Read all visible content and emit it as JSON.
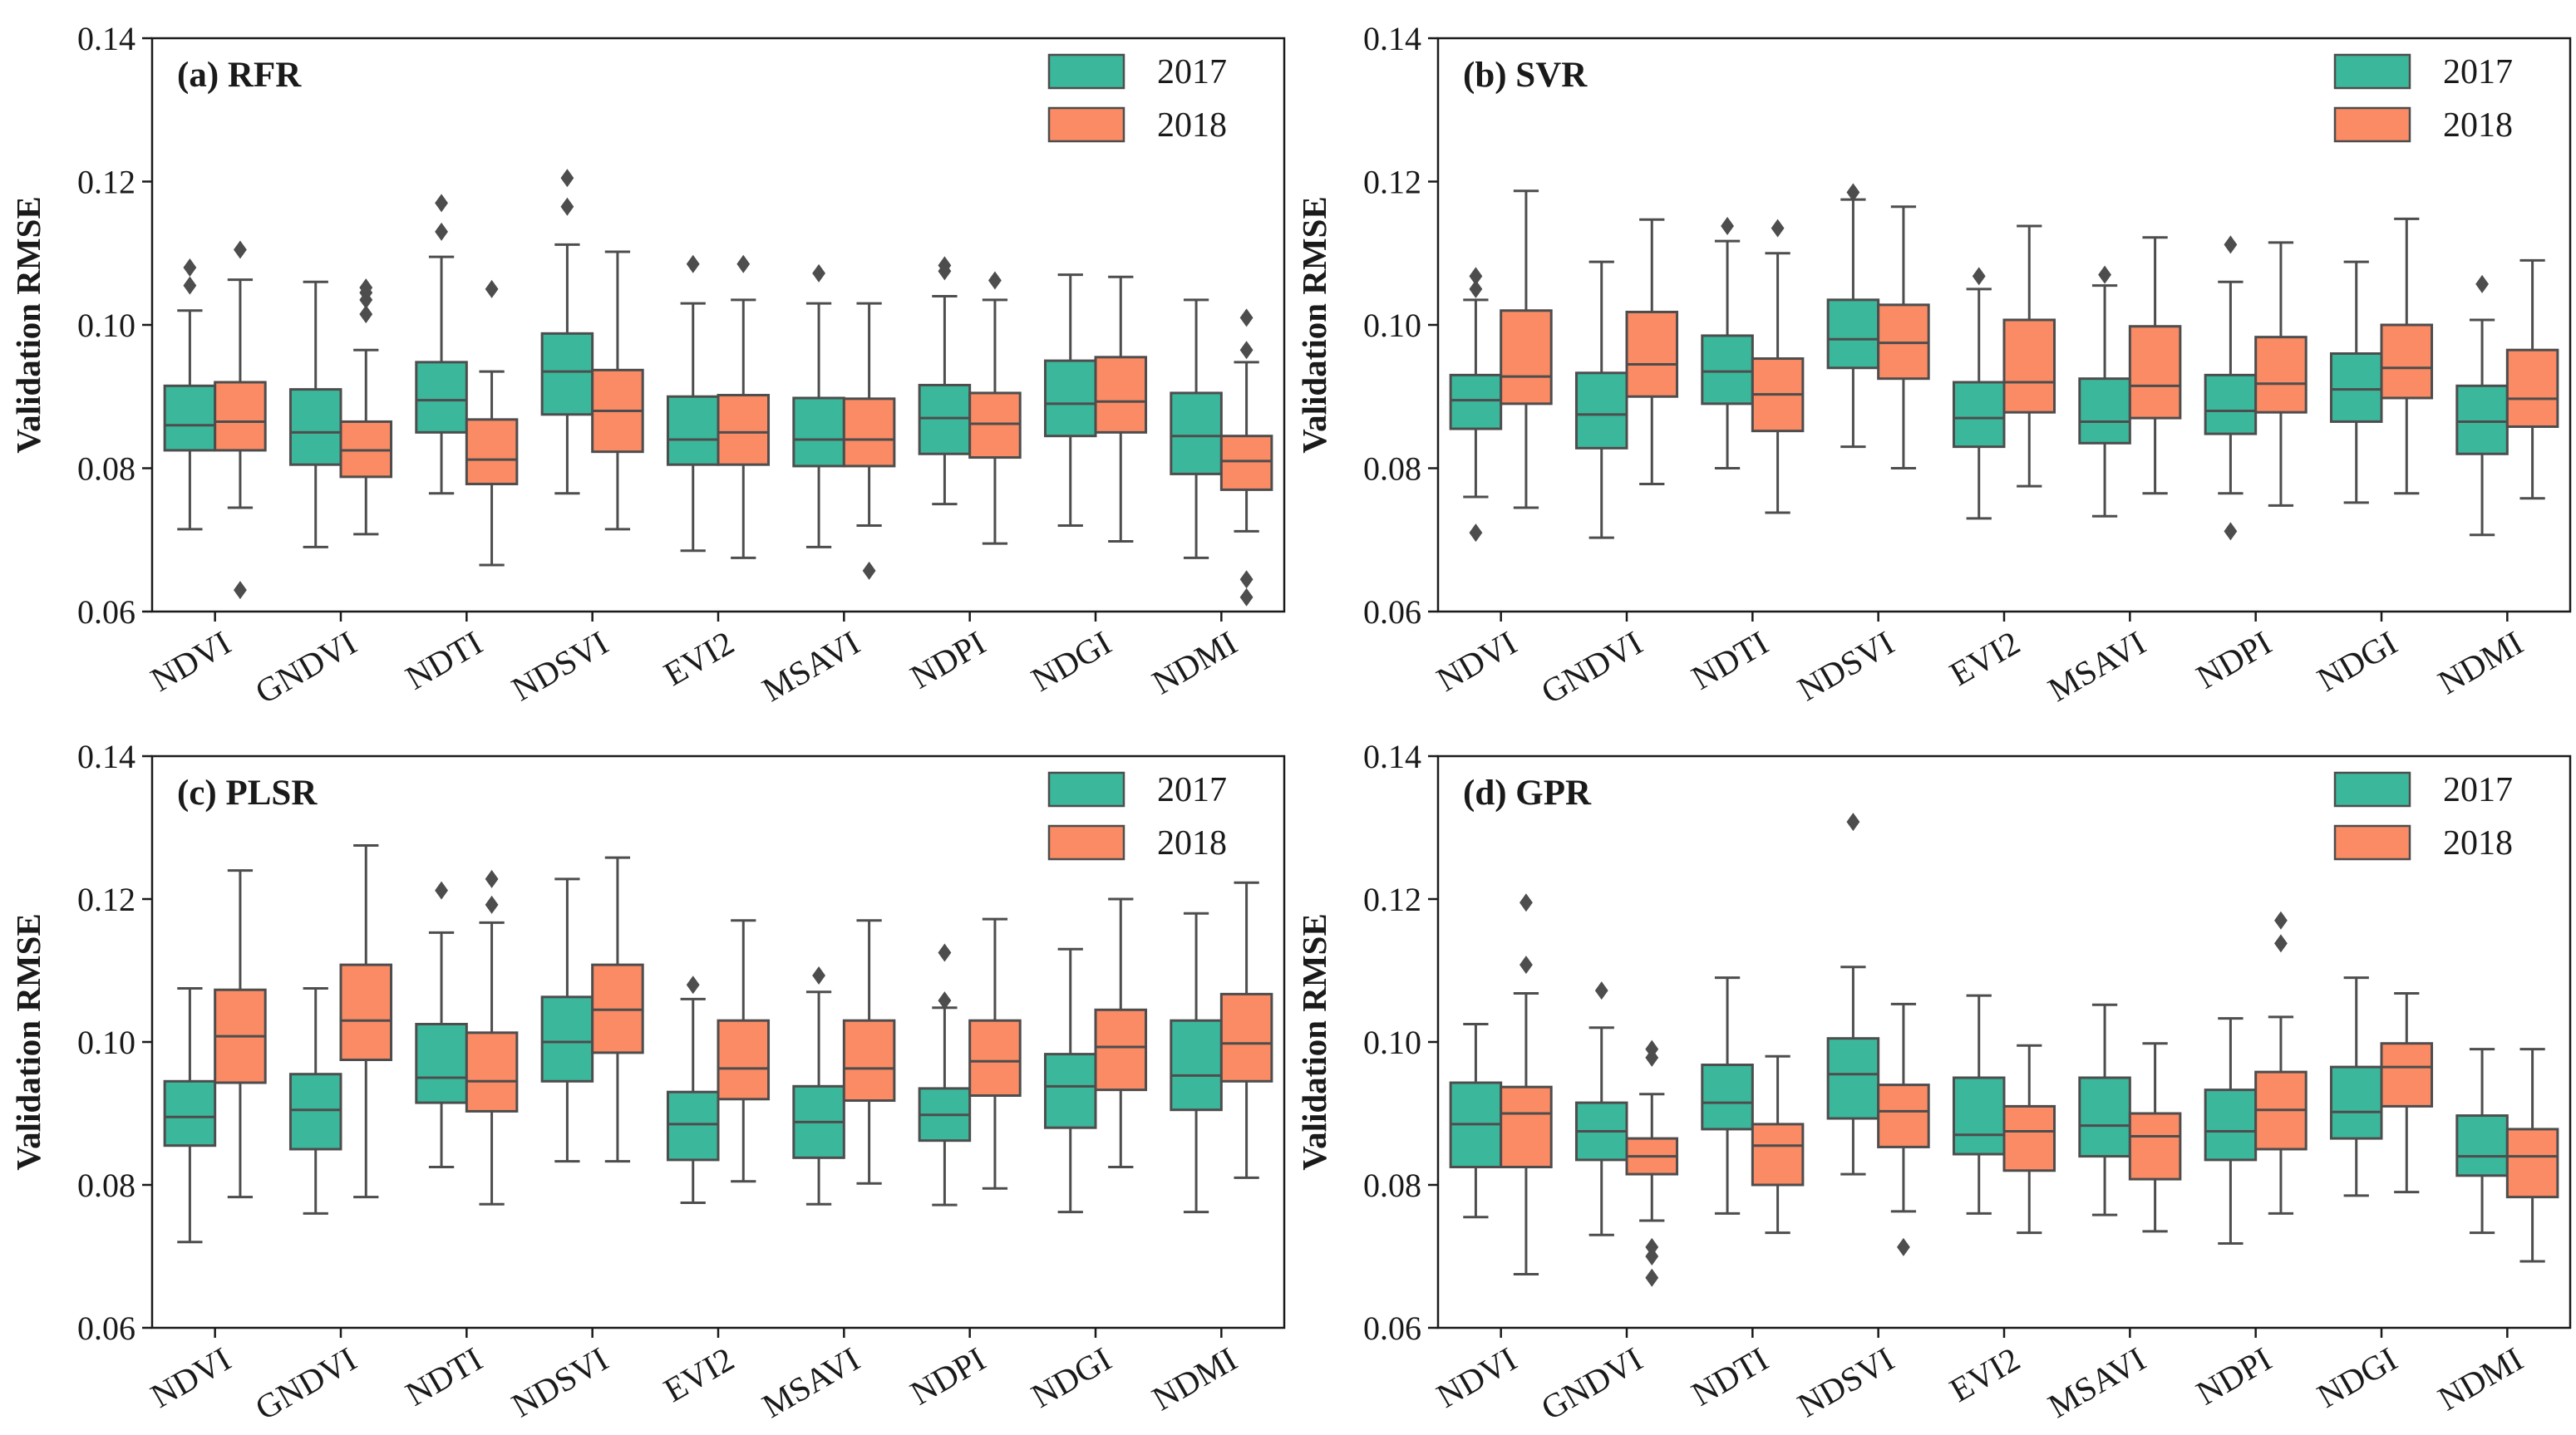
{
  "colors": {
    "y2017": "#3bb89b",
    "y2018": "#fa8b64",
    "line": "#4d4d4d",
    "axis": "#1a1a1a"
  },
  "chart_data": [
    {
      "type": "box",
      "title": "(a) RFR",
      "ylabel": "Validation RMSE",
      "ylim": [
        0.06,
        0.14
      ],
      "yticks": [
        "0.06",
        "0.08",
        "0.10",
        "0.12",
        "0.14"
      ],
      "categories": [
        "NDVI",
        "GNDVI",
        "NDTI",
        "NDSVI",
        "EVI2",
        "MSAVI",
        "NDPI",
        "NDGI",
        "NDMI"
      ],
      "legend": [
        "2017",
        "2018"
      ],
      "series": [
        {
          "name": "2017",
          "boxes": [
            {
              "whislo": 0.0715,
              "q1": 0.0825,
              "med": 0.086,
              "q3": 0.0915,
              "whishi": 0.102,
              "fliers": [
                0.1055,
                0.108
              ]
            },
            {
              "whislo": 0.069,
              "q1": 0.0805,
              "med": 0.085,
              "q3": 0.091,
              "whishi": 0.106,
              "fliers": []
            },
            {
              "whislo": 0.0765,
              "q1": 0.085,
              "med": 0.0895,
              "q3": 0.0948,
              "whishi": 0.1095,
              "fliers": [
                0.113,
                0.117
              ]
            },
            {
              "whislo": 0.0765,
              "q1": 0.0875,
              "med": 0.0935,
              "q3": 0.0988,
              "whishi": 0.1112,
              "fliers": [
                0.1165,
                0.1205
              ]
            },
            {
              "whislo": 0.0685,
              "q1": 0.0805,
              "med": 0.084,
              "q3": 0.09,
              "whishi": 0.103,
              "fliers": [
                0.1085
              ]
            },
            {
              "whislo": 0.069,
              "q1": 0.0803,
              "med": 0.084,
              "q3": 0.0898,
              "whishi": 0.103,
              "fliers": [
                0.1072
              ]
            },
            {
              "whislo": 0.075,
              "q1": 0.082,
              "med": 0.087,
              "q3": 0.0916,
              "whishi": 0.104,
              "fliers": [
                0.1075,
                0.1083
              ]
            },
            {
              "whislo": 0.072,
              "q1": 0.0845,
              "med": 0.089,
              "q3": 0.095,
              "whishi": 0.107,
              "fliers": []
            },
            {
              "whislo": 0.0675,
              "q1": 0.0792,
              "med": 0.0845,
              "q3": 0.0905,
              "whishi": 0.1035,
              "fliers": []
            }
          ]
        },
        {
          "name": "2018",
          "boxes": [
            {
              "whislo": 0.0745,
              "q1": 0.0825,
              "med": 0.0865,
              "q3": 0.092,
              "whishi": 0.1063,
              "fliers": [
                0.063,
                0.1105
              ]
            },
            {
              "whislo": 0.0708,
              "q1": 0.0788,
              "med": 0.0825,
              "q3": 0.0865,
              "whishi": 0.0965,
              "fliers": [
                0.1015,
                0.1035,
                0.1045,
                0.1052
              ]
            },
            {
              "whislo": 0.0665,
              "q1": 0.0778,
              "med": 0.0812,
              "q3": 0.0868,
              "whishi": 0.0935,
              "fliers": [
                0.105
              ]
            },
            {
              "whislo": 0.0715,
              "q1": 0.0823,
              "med": 0.088,
              "q3": 0.0937,
              "whishi": 0.1102,
              "fliers": []
            },
            {
              "whislo": 0.0675,
              "q1": 0.0805,
              "med": 0.085,
              "q3": 0.0902,
              "whishi": 0.1035,
              "fliers": [
                0.1085
              ]
            },
            {
              "whislo": 0.072,
              "q1": 0.0803,
              "med": 0.084,
              "q3": 0.0897,
              "whishi": 0.103,
              "fliers": [
                0.0657
              ]
            },
            {
              "whislo": 0.0695,
              "q1": 0.0815,
              "med": 0.0862,
              "q3": 0.0905,
              "whishi": 0.1035,
              "fliers": [
                0.1062
              ]
            },
            {
              "whislo": 0.0698,
              "q1": 0.085,
              "med": 0.0893,
              "q3": 0.0955,
              "whishi": 0.1067,
              "fliers": []
            },
            {
              "whislo": 0.0712,
              "q1": 0.077,
              "med": 0.081,
              "q3": 0.0845,
              "whishi": 0.0948,
              "fliers": [
                0.062,
                0.0645,
                0.0965,
                0.101
              ]
            }
          ]
        }
      ]
    },
    {
      "type": "box",
      "title": "(b) SVR",
      "ylabel": "Validation RMSE",
      "ylim": [
        0.06,
        0.14
      ],
      "yticks": [
        "0.06",
        "0.08",
        "0.10",
        "0.12",
        "0.14"
      ],
      "categories": [
        "NDVI",
        "GNDVI",
        "NDTI",
        "NDSVI",
        "EVI2",
        "MSAVI",
        "NDPI",
        "NDGI",
        "NDMI"
      ],
      "legend": [
        "2017",
        "2018"
      ],
      "series": [
        {
          "name": "2017",
          "boxes": [
            {
              "whislo": 0.076,
              "q1": 0.0855,
              "med": 0.0895,
              "q3": 0.093,
              "whishi": 0.1035,
              "fliers": [
                0.071,
                0.105,
                0.1068
              ]
            },
            {
              "whislo": 0.0703,
              "q1": 0.0828,
              "med": 0.0875,
              "q3": 0.0933,
              "whishi": 0.1088,
              "fliers": []
            },
            {
              "whislo": 0.08,
              "q1": 0.089,
              "med": 0.0935,
              "q3": 0.0985,
              "whishi": 0.1117,
              "fliers": [
                0.1138
              ]
            },
            {
              "whislo": 0.083,
              "q1": 0.094,
              "med": 0.098,
              "q3": 0.1035,
              "whishi": 0.1175,
              "fliers": [
                0.1185
              ]
            },
            {
              "whislo": 0.073,
              "q1": 0.083,
              "med": 0.087,
              "q3": 0.092,
              "whishi": 0.105,
              "fliers": [
                0.1068
              ]
            },
            {
              "whislo": 0.0733,
              "q1": 0.0835,
              "med": 0.0865,
              "q3": 0.0925,
              "whishi": 0.1055,
              "fliers": [
                0.107
              ]
            },
            {
              "whislo": 0.0765,
              "q1": 0.0848,
              "med": 0.088,
              "q3": 0.093,
              "whishi": 0.106,
              "fliers": [
                0.0712,
                0.1112
              ]
            },
            {
              "whislo": 0.0752,
              "q1": 0.0865,
              "med": 0.091,
              "q3": 0.096,
              "whishi": 0.1088,
              "fliers": []
            },
            {
              "whislo": 0.0707,
              "q1": 0.082,
              "med": 0.0865,
              "q3": 0.0915,
              "whishi": 0.1007,
              "fliers": [
                0.1057
              ]
            }
          ]
        },
        {
          "name": "2018",
          "boxes": [
            {
              "whislo": 0.0745,
              "q1": 0.089,
              "med": 0.0928,
              "q3": 0.102,
              "whishi": 0.1187,
              "fliers": []
            },
            {
              "whislo": 0.0778,
              "q1": 0.09,
              "med": 0.0945,
              "q3": 0.1018,
              "whishi": 0.1147,
              "fliers": []
            },
            {
              "whislo": 0.0738,
              "q1": 0.0852,
              "med": 0.0903,
              "q3": 0.0953,
              "whishi": 0.11,
              "fliers": [
                0.1135
              ]
            },
            {
              "whislo": 0.08,
              "q1": 0.0925,
              "med": 0.0975,
              "q3": 0.1028,
              "whishi": 0.1165,
              "fliers": []
            },
            {
              "whislo": 0.0775,
              "q1": 0.0878,
              "med": 0.092,
              "q3": 0.1007,
              "whishi": 0.1138,
              "fliers": []
            },
            {
              "whislo": 0.0765,
              "q1": 0.087,
              "med": 0.0915,
              "q3": 0.0998,
              "whishi": 0.1122,
              "fliers": []
            },
            {
              "whislo": 0.0748,
              "q1": 0.0878,
              "med": 0.0918,
              "q3": 0.0983,
              "whishi": 0.1115,
              "fliers": []
            },
            {
              "whislo": 0.0765,
              "q1": 0.0898,
              "med": 0.094,
              "q3": 0.1,
              "whishi": 0.1148,
              "fliers": []
            },
            {
              "whislo": 0.0758,
              "q1": 0.0858,
              "med": 0.0897,
              "q3": 0.0965,
              "whishi": 0.109,
              "fliers": []
            }
          ]
        }
      ]
    },
    {
      "type": "box",
      "title": "(c) PLSR",
      "ylabel": "Validation RMSE",
      "ylim": [
        0.06,
        0.14
      ],
      "yticks": [
        "0.06",
        "0.08",
        "0.10",
        "0.12",
        "0.14"
      ],
      "categories": [
        "NDVI",
        "GNDVI",
        "NDTI",
        "NDSVI",
        "EVI2",
        "MSAVI",
        "NDPI",
        "NDGI",
        "NDMI"
      ],
      "legend": [
        "2017",
        "2018"
      ],
      "series": [
        {
          "name": "2017",
          "boxes": [
            {
              "whislo": 0.072,
              "q1": 0.0855,
              "med": 0.0895,
              "q3": 0.0945,
              "whishi": 0.1075,
              "fliers": []
            },
            {
              "whislo": 0.076,
              "q1": 0.085,
              "med": 0.0905,
              "q3": 0.0955,
              "whishi": 0.1075,
              "fliers": []
            },
            {
              "whislo": 0.0825,
              "q1": 0.0915,
              "med": 0.095,
              "q3": 0.1025,
              "whishi": 0.1153,
              "fliers": [
                0.1212
              ]
            },
            {
              "whislo": 0.0833,
              "q1": 0.0945,
              "med": 0.1,
              "q3": 0.1063,
              "whishi": 0.1228,
              "fliers": []
            },
            {
              "whislo": 0.0775,
              "q1": 0.0835,
              "med": 0.0885,
              "q3": 0.093,
              "whishi": 0.106,
              "fliers": [
                0.108
              ]
            },
            {
              "whislo": 0.0773,
              "q1": 0.0838,
              "med": 0.0888,
              "q3": 0.0938,
              "whishi": 0.107,
              "fliers": [
                0.1093
              ]
            },
            {
              "whislo": 0.0772,
              "q1": 0.0862,
              "med": 0.0898,
              "q3": 0.0935,
              "whishi": 0.1048,
              "fliers": [
                0.1058,
                0.1125
              ]
            },
            {
              "whislo": 0.0762,
              "q1": 0.088,
              "med": 0.0938,
              "q3": 0.0983,
              "whishi": 0.113,
              "fliers": []
            },
            {
              "whislo": 0.0762,
              "q1": 0.0905,
              "med": 0.0953,
              "q3": 0.103,
              "whishi": 0.118,
              "fliers": []
            }
          ]
        },
        {
          "name": "2018",
          "boxes": [
            {
              "whislo": 0.0783,
              "q1": 0.0943,
              "med": 0.1008,
              "q3": 0.1073,
              "whishi": 0.124,
              "fliers": []
            },
            {
              "whislo": 0.0783,
              "q1": 0.0975,
              "med": 0.103,
              "q3": 0.1108,
              "whishi": 0.1275,
              "fliers": []
            },
            {
              "whislo": 0.0773,
              "q1": 0.0903,
              "med": 0.0945,
              "q3": 0.1013,
              "whishi": 0.1167,
              "fliers": [
                0.1192,
                0.1228
              ]
            },
            {
              "whislo": 0.0833,
              "q1": 0.0985,
              "med": 0.1045,
              "q3": 0.1108,
              "whishi": 0.1258,
              "fliers": []
            },
            {
              "whislo": 0.0805,
              "q1": 0.092,
              "med": 0.0963,
              "q3": 0.103,
              "whishi": 0.117,
              "fliers": []
            },
            {
              "whislo": 0.0802,
              "q1": 0.0918,
              "med": 0.0963,
              "q3": 0.103,
              "whishi": 0.117,
              "fliers": []
            },
            {
              "whislo": 0.0795,
              "q1": 0.0925,
              "med": 0.0973,
              "q3": 0.103,
              "whishi": 0.1172,
              "fliers": []
            },
            {
              "whislo": 0.0825,
              "q1": 0.0933,
              "med": 0.0993,
              "q3": 0.1045,
              "whishi": 0.12,
              "fliers": []
            },
            {
              "whislo": 0.081,
              "q1": 0.0945,
              "med": 0.0998,
              "q3": 0.1067,
              "whishi": 0.1223,
              "fliers": []
            }
          ]
        }
      ]
    },
    {
      "type": "box",
      "title": "(d) GPR",
      "ylabel": "Validation RMSE",
      "ylim": [
        0.06,
        0.14
      ],
      "yticks": [
        "0.06",
        "0.08",
        "0.10",
        "0.12",
        "0.14"
      ],
      "categories": [
        "NDVI",
        "GNDVI",
        "NDTI",
        "NDSVI",
        "EVI2",
        "MSAVI",
        "NDPI",
        "NDGI",
        "NDMI"
      ],
      "legend": [
        "2017",
        "2018"
      ],
      "series": [
        {
          "name": "2017",
          "boxes": [
            {
              "whislo": 0.0755,
              "q1": 0.0825,
              "med": 0.0885,
              "q3": 0.0943,
              "whishi": 0.1025,
              "fliers": []
            },
            {
              "whislo": 0.073,
              "q1": 0.0835,
              "med": 0.0875,
              "q3": 0.0915,
              "whishi": 0.102,
              "fliers": [
                0.1072
              ]
            },
            {
              "whislo": 0.076,
              "q1": 0.0878,
              "med": 0.0915,
              "q3": 0.0968,
              "whishi": 0.109,
              "fliers": []
            },
            {
              "whislo": 0.0815,
              "q1": 0.0893,
              "med": 0.0955,
              "q3": 0.1005,
              "whishi": 0.1105,
              "fliers": [
                0.1308
              ]
            },
            {
              "whislo": 0.076,
              "q1": 0.0843,
              "med": 0.087,
              "q3": 0.095,
              "whishi": 0.1065,
              "fliers": []
            },
            {
              "whislo": 0.0758,
              "q1": 0.084,
              "med": 0.0883,
              "q3": 0.095,
              "whishi": 0.1052,
              "fliers": []
            },
            {
              "whislo": 0.0718,
              "q1": 0.0835,
              "med": 0.0875,
              "q3": 0.0933,
              "whishi": 0.1033,
              "fliers": []
            },
            {
              "whislo": 0.0785,
              "q1": 0.0865,
              "med": 0.0902,
              "q3": 0.0965,
              "whishi": 0.109,
              "fliers": []
            },
            {
              "whislo": 0.0733,
              "q1": 0.0813,
              "med": 0.084,
              "q3": 0.0897,
              "whishi": 0.099,
              "fliers": []
            }
          ]
        },
        {
          "name": "2018",
          "boxes": [
            {
              "whislo": 0.0675,
              "q1": 0.0825,
              "med": 0.09,
              "q3": 0.0937,
              "whishi": 0.1068,
              "fliers": [
                0.1108,
                0.1195
              ]
            },
            {
              "whislo": 0.075,
              "q1": 0.0815,
              "med": 0.084,
              "q3": 0.0865,
              "whishi": 0.0927,
              "fliers": [
                0.067,
                0.07,
                0.0713,
                0.0978,
                0.099
              ]
            },
            {
              "whislo": 0.0733,
              "q1": 0.08,
              "med": 0.0855,
              "q3": 0.0885,
              "whishi": 0.098,
              "fliers": []
            },
            {
              "whislo": 0.0763,
              "q1": 0.0853,
              "med": 0.0903,
              "q3": 0.094,
              "whishi": 0.1053,
              "fliers": [
                0.0713
              ]
            },
            {
              "whislo": 0.0733,
              "q1": 0.082,
              "med": 0.0875,
              "q3": 0.091,
              "whishi": 0.0995,
              "fliers": []
            },
            {
              "whislo": 0.0735,
              "q1": 0.0808,
              "med": 0.0868,
              "q3": 0.09,
              "whishi": 0.0998,
              "fliers": []
            },
            {
              "whislo": 0.076,
              "q1": 0.085,
              "med": 0.0905,
              "q3": 0.0958,
              "whishi": 0.1035,
              "fliers": [
                0.1138,
                0.117
              ]
            },
            {
              "whislo": 0.079,
              "q1": 0.091,
              "med": 0.0965,
              "q3": 0.0998,
              "whishi": 0.1068,
              "fliers": []
            },
            {
              "whislo": 0.0693,
              "q1": 0.0783,
              "med": 0.084,
              "q3": 0.0878,
              "whishi": 0.099,
              "fliers": []
            }
          ]
        }
      ]
    }
  ]
}
